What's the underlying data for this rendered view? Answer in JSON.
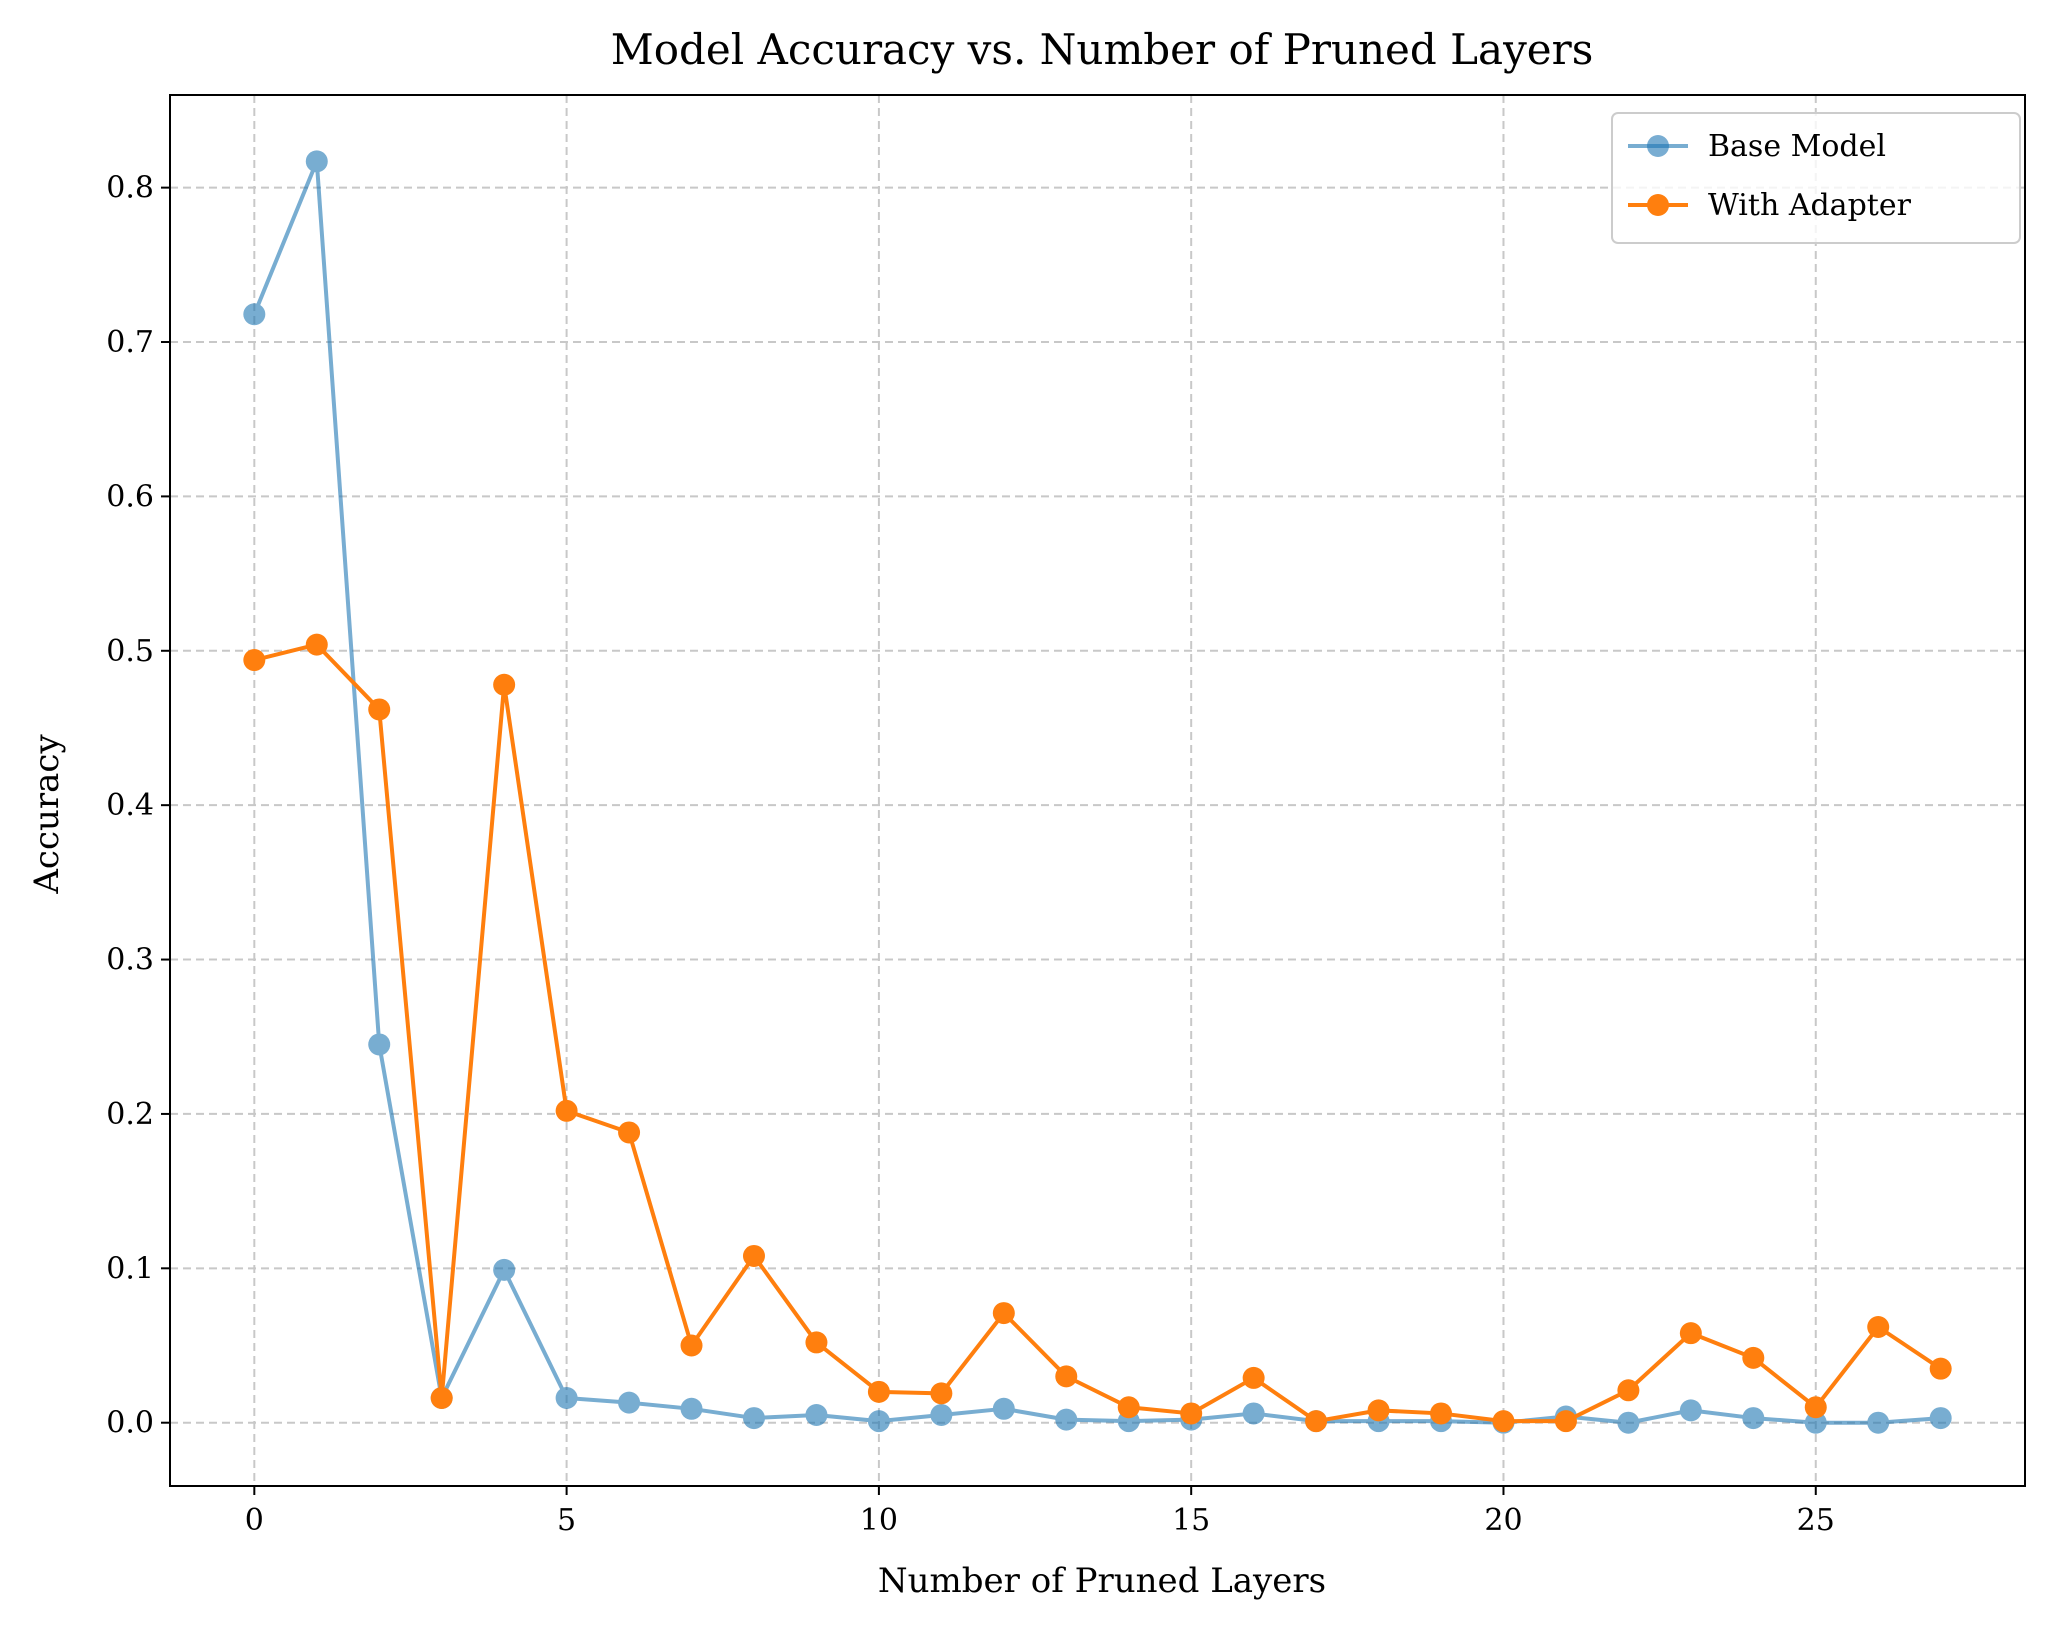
{
  "chart_data": {
    "type": "line",
    "title": "Model Accuracy vs. Number of Pruned Layers",
    "xlabel": "Number of Pruned Layers",
    "ylabel": "Accuracy",
    "xlim": [
      -1.35,
      28.35
    ],
    "ylim": [
      -0.041,
      0.86
    ],
    "xticks": [
      0,
      5,
      10,
      15,
      20,
      25
    ],
    "yticks": [
      0.0,
      0.1,
      0.2,
      0.3,
      0.4,
      0.5,
      0.6,
      0.7,
      0.8
    ],
    "xtick_labels": [
      "0",
      "5",
      "10",
      "15",
      "20",
      "25"
    ],
    "ytick_labels": [
      "0.0",
      "0.1",
      "0.2",
      "0.3",
      "0.4",
      "0.5",
      "0.6",
      "0.7",
      "0.8"
    ],
    "grid": true,
    "grid_style": "dashed",
    "legend_position": "top-right",
    "x": [
      0,
      1,
      2,
      3,
      4,
      5,
      6,
      7,
      8,
      9,
      10,
      11,
      12,
      13,
      14,
      15,
      16,
      17,
      18,
      19,
      20,
      21,
      22,
      23,
      24,
      25,
      26,
      27
    ],
    "series": [
      {
        "name": "Base Model",
        "color": "#1f77b4",
        "opacity": 0.6,
        "values": [
          0.718,
          0.817,
          0.245,
          0.016,
          0.099,
          0.016,
          0.013,
          0.009,
          0.003,
          0.005,
          0.001,
          0.005,
          0.009,
          0.002,
          0.001,
          0.002,
          0.006,
          0.001,
          0.001,
          0.001,
          0.0,
          0.004,
          0.0,
          0.008,
          0.003,
          0.0,
          0.0,
          0.003
        ]
      },
      {
        "name": "With Adapter",
        "color": "#ff7f0e",
        "opacity": 1.0,
        "values": [
          0.494,
          0.504,
          0.462,
          0.016,
          0.478,
          0.202,
          0.188,
          0.05,
          0.108,
          0.052,
          0.02,
          0.019,
          0.071,
          0.03,
          0.01,
          0.006,
          0.029,
          0.001,
          0.008,
          0.006,
          0.001,
          0.001,
          0.021,
          0.058,
          0.042,
          0.01,
          0.062,
          0.035
        ]
      }
    ]
  }
}
